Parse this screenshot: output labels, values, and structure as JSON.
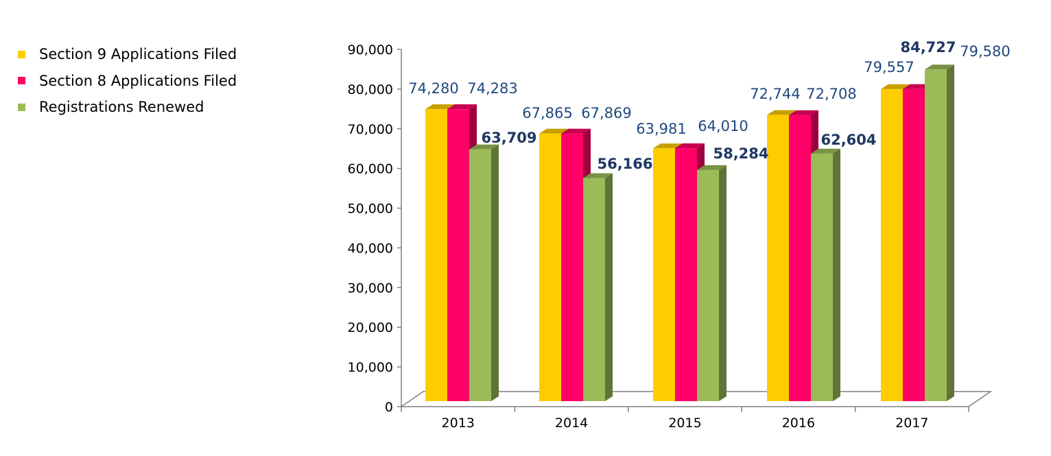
{
  "chart_data": {
    "type": "bar",
    "variant": "3d-clustered-column",
    "title": "",
    "xlabel": "",
    "ylabel": "",
    "categories": [
      "2013",
      "2014",
      "2015",
      "2016",
      "2017"
    ],
    "ylim": [
      0,
      90000
    ],
    "yticks": [
      0,
      10000,
      20000,
      30000,
      40000,
      50000,
      60000,
      70000,
      80000,
      90000
    ],
    "ytick_labels": [
      "0",
      "10,000",
      "20,000",
      "30,000",
      "40,000",
      "50,000",
      "60,000",
      "70,000",
      "80,000",
      "90,000"
    ],
    "legend_position": "top-left",
    "grid": false,
    "series": [
      {
        "name": "Section 9 Applications Filed",
        "color": "#FFCC00",
        "values": [
          74280,
          67865,
          63981,
          72744,
          79557
        ],
        "labels": [
          "74,280",
          "67,865",
          "63,981",
          "72,744",
          "79,557"
        ]
      },
      {
        "name": "Section 8 Applications Filed",
        "color": "#FF0066",
        "values": [
          74283,
          67869,
          64010,
          72708,
          79580
        ],
        "labels": [
          "74,283",
          "67,869",
          "64,010",
          "72,708",
          "79,580"
        ]
      },
      {
        "name": "Registrations Renewed",
        "color": "#9BBB59",
        "values": [
          63709,
          56166,
          58284,
          62604,
          84727
        ],
        "labels": [
          "63,709",
          "56,166",
          "58,284",
          "62,604",
          "84,727"
        ]
      }
    ]
  }
}
